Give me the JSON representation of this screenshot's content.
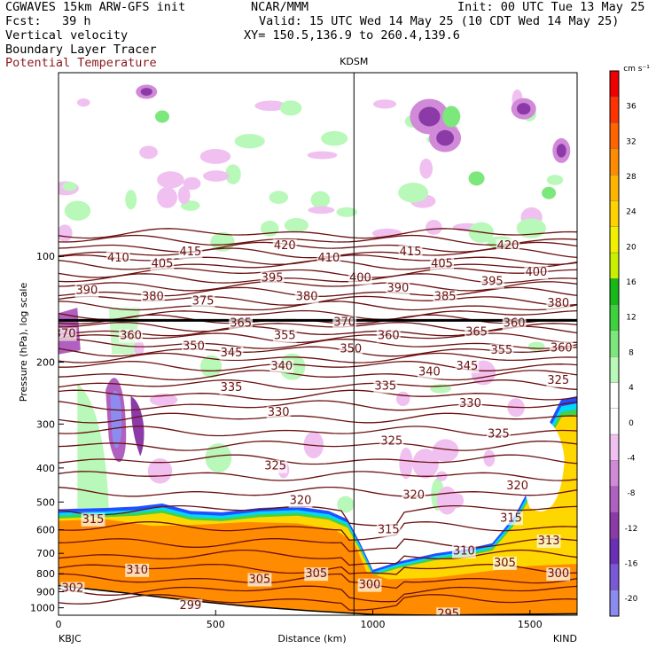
{
  "header": {
    "model": "CGWAVES 15km ARW-GFS init",
    "center": "NCAR/MMM",
    "init": "Init: 00 UTC Tue 13 May 25",
    "fcst_label": "Fcst:",
    "fcst_value": "39 h",
    "valid": "Valid: 15 UTC Wed 14 May 25 (10 CDT Wed 14 May 25)",
    "fields": [
      "Vertical velocity",
      "Boundary Layer Tracer",
      "Potential Temperature"
    ],
    "xy": "XY= 150.5,136.9 to 260.4,139.6"
  },
  "colors": {
    "theta_contour": "#6b1010",
    "tracer_orange": "#ff8c00",
    "tracer_yellow": "#ffd700",
    "tracer_green": "#44d244",
    "tracer_cyan": "#00d8ff",
    "tracer_blue": "#2050ff"
  },
  "chart_data": {
    "type": "heatmap",
    "xlabel": "Distance (km)",
    "ylabel": "Pressure (hPa), log scale",
    "xlim": [
      0,
      1650
    ],
    "ylim": [
      1050,
      30
    ],
    "y_scale": "log",
    "x_ticks": [
      0,
      500,
      1000,
      1500
    ],
    "y_ticks": [
      100,
      200,
      300,
      400,
      500,
      600,
      700,
      800,
      900,
      1000
    ],
    "endpoints": {
      "left": "KBJC",
      "right": "KIND"
    },
    "marker": {
      "label": "KDSM",
      "x": 940
    },
    "colorbar": {
      "unit": "cm s⁻¹",
      "ticks": [
        -20,
        -16,
        -12,
        -8,
        -4,
        0,
        4,
        8,
        12,
        16,
        20,
        24,
        28,
        32,
        36
      ],
      "colors": [
        "#8c8cf0",
        "#7a58d8",
        "#6a2fb6",
        "#8b3aa8",
        "#b060c0",
        "#d08ad8",
        "#f0c0f0",
        "#ffffff",
        "#ffffff",
        "#b8f8b8",
        "#7ce87c",
        "#3cd23c",
        "#18b818",
        "#c8f000",
        "#f0f000",
        "#ffd200",
        "#ffb400",
        "#ff8c00",
        "#ff6400",
        "#ff3200",
        "#f00000"
      ]
    },
    "theta_labels": [
      {
        "v": "410",
        "x": 190,
        "p": 101
      },
      {
        "v": "415",
        "x": 420,
        "p": 97
      },
      {
        "v": "420",
        "x": 720,
        "p": 93
      },
      {
        "v": "410",
        "x": 860,
        "p": 101
      },
      {
        "v": "415",
        "x": 1120,
        "p": 97
      },
      {
        "v": "420",
        "x": 1430,
        "p": 93
      },
      {
        "v": "405",
        "x": 330,
        "p": 105
      },
      {
        "v": "395",
        "x": 680,
        "p": 115
      },
      {
        "v": "400",
        "x": 960,
        "p": 115
      },
      {
        "v": "405",
        "x": 1220,
        "p": 105
      },
      {
        "v": "395",
        "x": 1380,
        "p": 118
      },
      {
        "v": "400",
        "x": 1520,
        "p": 111
      },
      {
        "v": "390",
        "x": 90,
        "p": 125
      },
      {
        "v": "380",
        "x": 300,
        "p": 130
      },
      {
        "v": "375",
        "x": 460,
        "p": 134
      },
      {
        "v": "380",
        "x": 790,
        "p": 130
      },
      {
        "v": "390",
        "x": 1080,
        "p": 123
      },
      {
        "v": "385",
        "x": 1230,
        "p": 130
      },
      {
        "v": "380",
        "x": 1590,
        "p": 136
      },
      {
        "v": "370",
        "x": 20,
        "p": 166
      },
      {
        "v": "360",
        "x": 230,
        "p": 168
      },
      {
        "v": "365",
        "x": 580,
        "p": 155
      },
      {
        "v": "370",
        "x": 910,
        "p": 154
      },
      {
        "v": "360",
        "x": 1050,
        "p": 168
      },
      {
        "v": "365",
        "x": 1330,
        "p": 164
      },
      {
        "v": "360",
        "x": 1450,
        "p": 155
      },
      {
        "v": "350",
        "x": 430,
        "p": 180
      },
      {
        "v": "355",
        "x": 720,
        "p": 168
      },
      {
        "v": "345",
        "x": 550,
        "p": 188
      },
      {
        "v": "350",
        "x": 930,
        "p": 183
      },
      {
        "v": "355",
        "x": 1410,
        "p": 185
      },
      {
        "v": "360",
        "x": 1600,
        "p": 182
      },
      {
        "v": "340",
        "x": 710,
        "p": 205
      },
      {
        "v": "340",
        "x": 1180,
        "p": 213
      },
      {
        "v": "345",
        "x": 1300,
        "p": 205
      },
      {
        "v": "335",
        "x": 550,
        "p": 236
      },
      {
        "v": "335",
        "x": 1040,
        "p": 234
      },
      {
        "v": "330",
        "x": 700,
        "p": 278
      },
      {
        "v": "330",
        "x": 1310,
        "p": 262
      },
      {
        "v": "325",
        "x": 1060,
        "p": 335
      },
      {
        "v": "325",
        "x": 1400,
        "p": 320
      },
      {
        "v": "325",
        "x": 690,
        "p": 395
      },
      {
        "v": "320",
        "x": 1130,
        "p": 478
      },
      {
        "v": "320",
        "x": 1460,
        "p": 450
      },
      {
        "v": "315",
        "x": 110,
        "p": 560
      },
      {
        "v": "315",
        "x": 1050,
        "p": 600
      },
      {
        "v": "315",
        "x": 1440,
        "p": 555
      },
      {
        "v": "310",
        "x": 250,
        "p": 780
      },
      {
        "v": "310",
        "x": 1290,
        "p": 690
      },
      {
        "v": "305",
        "x": 640,
        "p": 830
      },
      {
        "v": "305",
        "x": 820,
        "p": 800
      },
      {
        "v": "300",
        "x": 990,
        "p": 860
      },
      {
        "v": "300",
        "x": 1590,
        "p": 800
      },
      {
        "v": "302",
        "x": 45,
        "p": 880
      },
      {
        "v": "299",
        "x": 420,
        "p": 985
      },
      {
        "v": "295",
        "x": 1240,
        "p": 1040
      },
      {
        "v": "305",
        "x": 1420,
        "p": 745
      },
      {
        "v": "313",
        "x": 1560,
        "p": 645
      },
      {
        "v": "320",
        "x": 770,
        "p": 495
      },
      {
        "v": "325",
        "x": 1590,
        "p": 225
      }
    ]
  }
}
